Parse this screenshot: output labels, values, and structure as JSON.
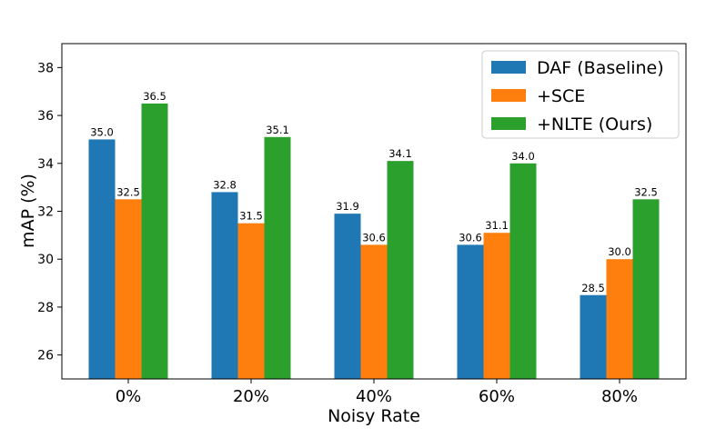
{
  "chart_data": {
    "type": "bar",
    "title": "",
    "xlabel": "Noisy Rate",
    "ylabel": "mAP (%)",
    "categories": [
      "0%",
      "20%",
      "40%",
      "60%",
      "80%"
    ],
    "ylim": [
      25,
      39
    ],
    "yticks": [
      26,
      28,
      30,
      32,
      34,
      36,
      38
    ],
    "grid": false,
    "legend_position": "top-right",
    "series": [
      {
        "name": "DAF (Baseline)",
        "color": "#1f77b4",
        "values": [
          35.0,
          32.8,
          31.9,
          30.6,
          28.5
        ]
      },
      {
        "name": "+SCE",
        "color": "#ff7f0e",
        "values": [
          32.5,
          31.5,
          30.6,
          31.1,
          30.0
        ]
      },
      {
        "name": "+NLTE (Ours)",
        "color": "#2ca02c",
        "values": [
          36.5,
          35.1,
          34.1,
          34.0,
          32.5
        ]
      }
    ]
  }
}
